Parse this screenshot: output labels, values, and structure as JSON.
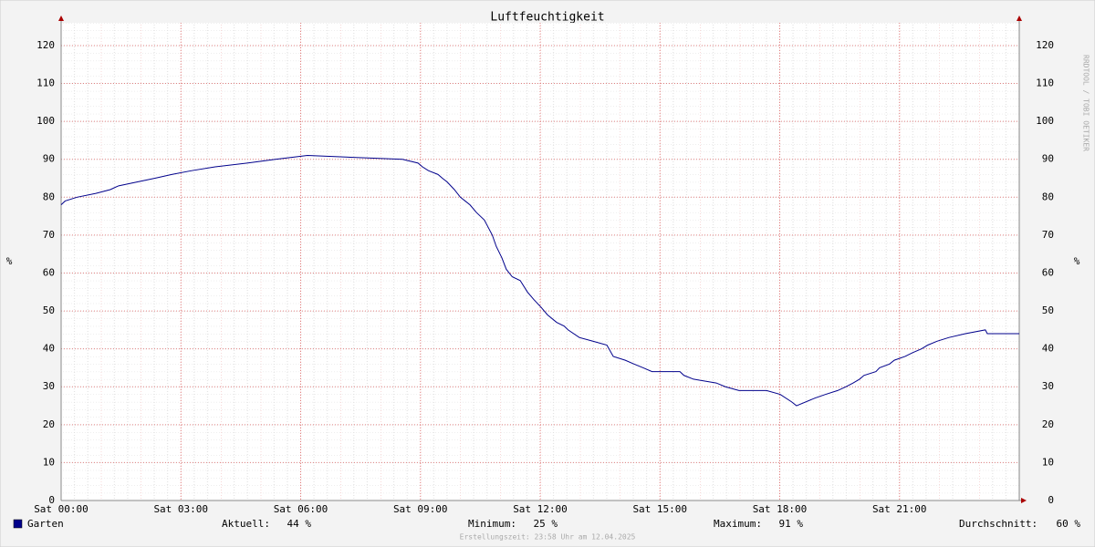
{
  "chart_data": {
    "type": "line",
    "title": "Luftfeuchtigkeit",
    "y_label": "%",
    "watermark": "RRDTOOL / TOBI OETIKER",
    "footer": "Erstellungszeit: 23:58 Uhr am 12.04.2025",
    "xlim": [
      0,
      24
    ],
    "ylim": [
      0,
      126
    ],
    "xticks": [
      {
        "value": 0,
        "label": "Sat 00:00"
      },
      {
        "value": 3,
        "label": "Sat 03:00"
      },
      {
        "value": 6,
        "label": "Sat 06:00"
      },
      {
        "value": 9,
        "label": "Sat 09:00"
      },
      {
        "value": 12,
        "label": "Sat 12:00"
      },
      {
        "value": 15,
        "label": "Sat 15:00"
      },
      {
        "value": 18,
        "label": "Sat 18:00"
      },
      {
        "value": 21,
        "label": "Sat 21:00"
      }
    ],
    "yticks": [
      0,
      10,
      20,
      30,
      40,
      50,
      60,
      70,
      80,
      90,
      100,
      110,
      120
    ],
    "grid": true,
    "x": [
      0,
      0.1,
      0.4,
      0.87,
      1.23,
      1.44,
      1.9,
      2.35,
      2.77,
      3.27,
      3.86,
      4.66,
      5.37,
      6.17,
      8.55,
      8.94,
      9.05,
      9.2,
      9.44,
      9.55,
      9.67,
      9.85,
      10,
      10.24,
      10.4,
      10.6,
      10.7,
      10.8,
      10.9,
      11.04,
      11.15,
      11.3,
      11.5,
      11.68,
      11.84,
      12.02,
      12.18,
      12.41,
      12.6,
      12.7,
      12.98,
      13.33,
      13.67,
      13.83,
      14.13,
      14.35,
      14.58,
      14.8,
      15.5,
      15.6,
      15.84,
      16.41,
      16.64,
      16.98,
      17.67,
      18.01,
      18.3,
      18.42,
      18.88,
      19.15,
      19.45,
      19.66,
      19.84,
      20,
      20.11,
      20.41,
      20.5,
      20.75,
      20.87,
      21.14,
      21.33,
      21.55,
      21.71,
      21.94,
      22.24,
      22.65,
      23.15,
      23.2,
      24
    ],
    "series": [
      {
        "name": "Garten",
        "color": "#00008b",
        "values": [
          78,
          79,
          80,
          81,
          82,
          83,
          84,
          85,
          86,
          87,
          88,
          89,
          90,
          91,
          90,
          89,
          88,
          87,
          86,
          85,
          84,
          82,
          80,
          78,
          76,
          74,
          72,
          70,
          67,
          64,
          61,
          59,
          58,
          55,
          53,
          51,
          49,
          47,
          46,
          45,
          43,
          42,
          41,
          38,
          37,
          36,
          35,
          34,
          34,
          33,
          32,
          31,
          30,
          29,
          29,
          28,
          26,
          25,
          27,
          28,
          29,
          30,
          31,
          32,
          33,
          34,
          35,
          36,
          37,
          38,
          39,
          40,
          41,
          42,
          43,
          44,
          45,
          44,
          44
        ]
      }
    ],
    "stats": [
      {
        "label": "Aktuell:",
        "value": 44,
        "value_label": "44 %"
      },
      {
        "label": "Minimum:",
        "value": 25,
        "value_label": "25 %"
      },
      {
        "label": "Maximum:",
        "value": 91,
        "value_label": "91 %"
      },
      {
        "label": "Durchschnitt:",
        "value": 60,
        "value_label": "60 %"
      }
    ]
  }
}
